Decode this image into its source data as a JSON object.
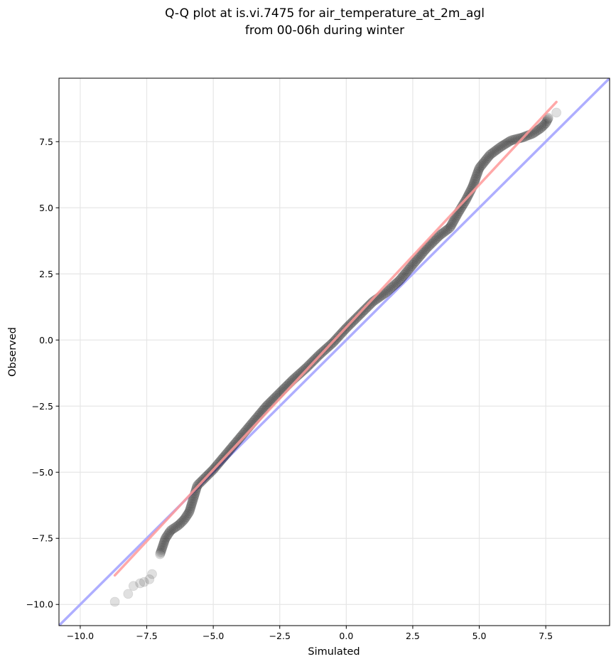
{
  "chart_data": {
    "type": "scatter",
    "title_line1": "Q-Q plot at is.vi.7475 for air_temperature_at_2m_agl",
    "title_line2": "from 00-06h during winter",
    "xlabel": "Simulated",
    "ylabel": "Observed",
    "xlim": [
      -10.8,
      9.9
    ],
    "ylim": [
      -10.8,
      9.9
    ],
    "grid": true,
    "x_ticks": [
      -10.0,
      -7.5,
      -5.0,
      -2.5,
      0.0,
      2.5,
      5.0,
      7.5
    ],
    "y_ticks": [
      -10.0,
      -7.5,
      -5.0,
      -2.5,
      0.0,
      2.5,
      5.0,
      7.5
    ],
    "x_tick_labels": [
      "−10.0",
      "−7.5",
      "−5.0",
      "−2.5",
      "0.0",
      "2.5",
      "5.0",
      "7.5"
    ],
    "y_tick_labels": [
      "−10.0",
      "−7.5",
      "−5.0",
      "−2.5",
      "0.0",
      "2.5",
      "5.0",
      "7.5"
    ],
    "reference_line": {
      "points": [
        [
          -10.8,
          -10.8
        ],
        [
          9.9,
          9.9
        ]
      ],
      "color": "#aaaaff"
    },
    "fit_line": {
      "points": [
        [
          -8.7,
          -8.9
        ],
        [
          7.9,
          9.0
        ]
      ],
      "color": "#ff9999"
    },
    "points_color": "#000000",
    "quantile_curve": [
      [
        -8.7,
        -9.9
      ],
      [
        -8.2,
        -9.6
      ],
      [
        -8.0,
        -9.3
      ],
      [
        -7.7,
        -9.15
      ],
      [
        -7.5,
        -9.05
      ],
      [
        -7.3,
        -8.85
      ],
      [
        -7.1,
        -8.5
      ],
      [
        -7.0,
        -8.1
      ],
      [
        -6.9,
        -7.8
      ],
      [
        -6.8,
        -7.5
      ],
      [
        -6.6,
        -7.2
      ],
      [
        -6.3,
        -7.0
      ],
      [
        -6.1,
        -6.8
      ],
      [
        -5.9,
        -6.5
      ],
      [
        -5.75,
        -6.0
      ],
      [
        -5.6,
        -5.5
      ],
      [
        -5.3,
        -5.2
      ],
      [
        -5.0,
        -4.9
      ],
      [
        -4.5,
        -4.3
      ],
      [
        -4.0,
        -3.7
      ],
      [
        -3.5,
        -3.1
      ],
      [
        -3.0,
        -2.5
      ],
      [
        -2.5,
        -2.0
      ],
      [
        -2.0,
        -1.5
      ],
      [
        -1.5,
        -1.05
      ],
      [
        -1.0,
        -0.55
      ],
      [
        -0.5,
        -0.1
      ],
      [
        0.0,
        0.45
      ],
      [
        0.5,
        0.95
      ],
      [
        1.0,
        1.45
      ],
      [
        1.5,
        1.8
      ],
      [
        2.0,
        2.25
      ],
      [
        2.5,
        2.85
      ],
      [
        3.0,
        3.45
      ],
      [
        3.5,
        3.95
      ],
      [
        3.9,
        4.25
      ],
      [
        4.2,
        4.8
      ],
      [
        4.5,
        5.3
      ],
      [
        4.75,
        5.8
      ],
      [
        5.0,
        6.5
      ],
      [
        5.4,
        7.0
      ],
      [
        5.8,
        7.3
      ],
      [
        6.2,
        7.55
      ],
      [
        6.6,
        7.65
      ],
      [
        7.0,
        7.8
      ],
      [
        7.3,
        8.0
      ],
      [
        7.5,
        8.2
      ],
      [
        7.6,
        8.4
      ],
      [
        7.9,
        8.6
      ]
    ],
    "sparse_points": [
      [
        -8.7,
        -9.9
      ],
      [
        -8.2,
        -9.6
      ],
      [
        -8.0,
        -9.3
      ],
      [
        -7.75,
        -9.2
      ],
      [
        -7.6,
        -9.15
      ],
      [
        -7.4,
        -9.05
      ],
      [
        -7.3,
        -8.85
      ],
      [
        7.6,
        8.4
      ],
      [
        7.9,
        8.6
      ]
    ],
    "n_points": 520
  }
}
